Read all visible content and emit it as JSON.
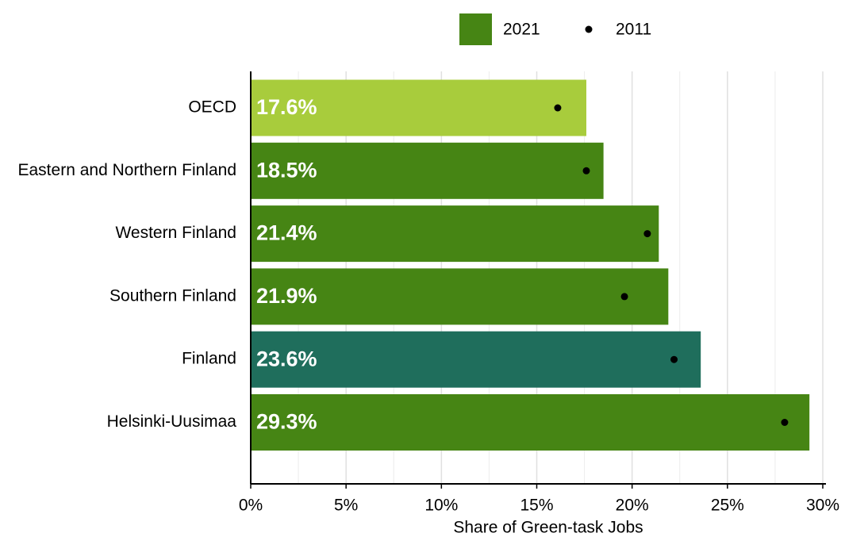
{
  "chart_data": {
    "type": "bar",
    "orientation": "horizontal",
    "categories": [
      "OECD",
      "Eastern and Northern Finland",
      "Western Finland",
      "Southern Finland",
      "Finland",
      "Helsinki-Uusimaa"
    ],
    "series": [
      {
        "name": "2021",
        "color": "#468514",
        "colors": [
          "#a8cc3c",
          "#468514",
          "#468514",
          "#468514",
          "#1f6e5c",
          "#468514"
        ],
        "values": [
          17.6,
          18.5,
          21.4,
          21.9,
          23.6,
          29.3
        ],
        "value_labels": [
          "17.6%",
          "18.5%",
          "21.4%",
          "21.9%",
          "23.6%",
          "29.3%"
        ]
      },
      {
        "name": "2011",
        "color": "#000000",
        "marker": "dot",
        "values": [
          16.1,
          17.6,
          20.8,
          19.6,
          22.2,
          28.0
        ]
      }
    ],
    "xlabel": "Share of Green-task Jobs",
    "xlim": [
      0,
      30
    ],
    "xticks": [
      {
        "value": 0,
        "label": "0%"
      },
      {
        "value": 5,
        "label": "5%"
      },
      {
        "value": 10,
        "label": "10%"
      },
      {
        "value": 15,
        "label": "15%"
      },
      {
        "value": 20,
        "label": "20%"
      },
      {
        "value": 25,
        "label": "25%"
      },
      {
        "value": 30,
        "label": "30%"
      }
    ],
    "minor_xticks": [
      2.5,
      7.5,
      12.5,
      17.5,
      22.5,
      27.5
    ],
    "grid": true,
    "legend": "top"
  }
}
